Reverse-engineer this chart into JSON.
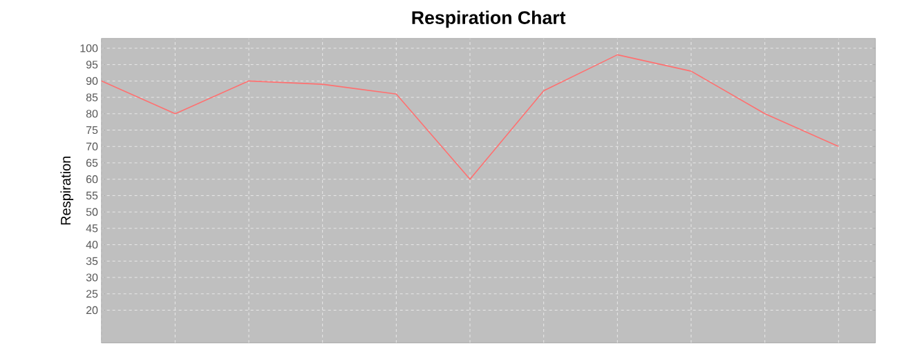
{
  "chart_data": {
    "type": "line",
    "title": "Respiration Chart",
    "ylabel": "Respiration",
    "categories": [
      null,
      null,
      null,
      null,
      null,
      null,
      null,
      null,
      null,
      null,
      null
    ],
    "values": [
      90,
      80,
      90,
      89,
      86,
      60,
      87,
      98,
      93,
      80,
      70
    ],
    "color": "#ff7070",
    "ylim": [
      10,
      103
    ],
    "yticks": [
      20,
      25,
      30,
      35,
      40,
      45,
      50,
      55,
      60,
      65,
      70,
      75,
      80,
      85,
      90,
      95,
      100
    ],
    "grid": true,
    "marker": "none",
    "line_style": "solid"
  }
}
